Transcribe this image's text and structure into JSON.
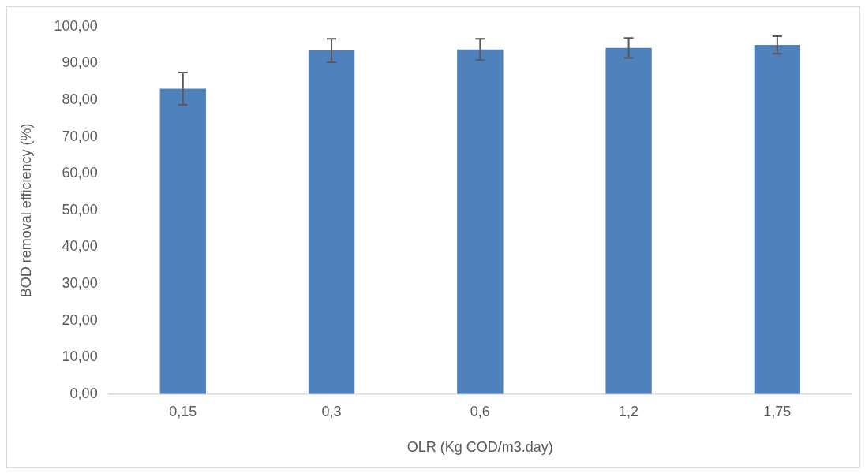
{
  "chart_data": {
    "type": "bar",
    "xlabel": "OLR (Kg COD/m3.day)",
    "ylabel": "BOD removal efficiency (%)",
    "categories": [
      "0,15",
      "0,3",
      "0,6",
      "1,2",
      "1,75"
    ],
    "series": [
      {
        "color": "#4f81bd",
        "values": [
          83.1,
          93.5,
          93.8,
          94.2,
          95.0
        ],
        "errors": [
          4.4,
          3.2,
          2.9,
          2.7,
          2.4
        ]
      }
    ],
    "ylim": [
      0,
      100
    ],
    "yticks": [
      {
        "value": 0,
        "label": "0,00"
      },
      {
        "value": 10,
        "label": "10,00"
      },
      {
        "value": 20,
        "label": "20,00"
      },
      {
        "value": 30,
        "label": "30,00"
      },
      {
        "value": 40,
        "label": "40,00"
      },
      {
        "value": 50,
        "label": "50,00"
      },
      {
        "value": 60,
        "label": "60,00"
      },
      {
        "value": 70,
        "label": "70,00"
      },
      {
        "value": 80,
        "label": "80,00"
      },
      {
        "value": 90,
        "label": "90,00"
      },
      {
        "value": 100,
        "label": "100,00"
      }
    ],
    "grid": false,
    "legend": false
  }
}
